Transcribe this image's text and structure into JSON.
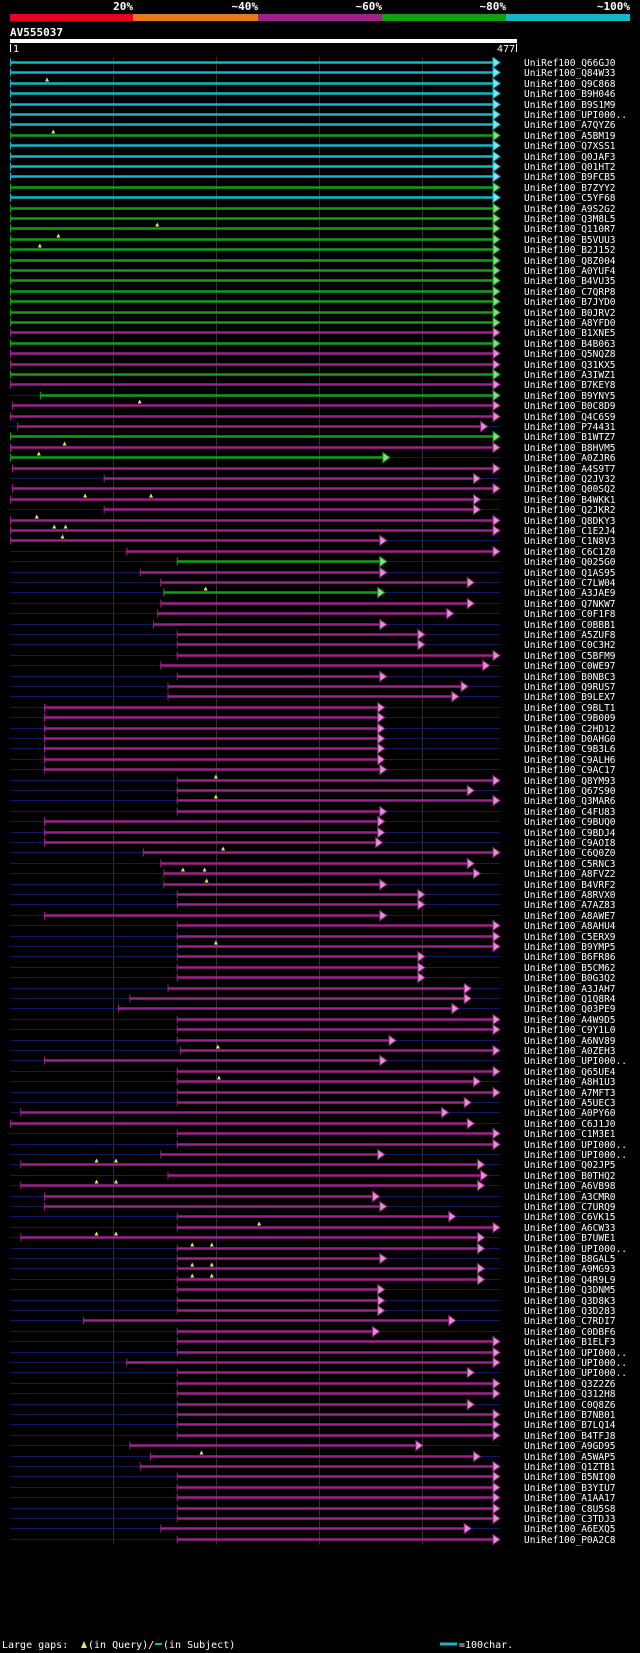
{
  "query_name": "AV555037",
  "ruler": {
    "start_label": "1",
    "end_label": "477"
  },
  "identity_legend": [
    {
      "label": "20%",
      "color": "#e8001c"
    },
    {
      "label": "~40%",
      "color": "#e87a1c"
    },
    {
      "label": "~60%",
      "color": "#a0208c"
    },
    {
      "label": "~80%",
      "color": "#12a012"
    },
    {
      "label": "~100%",
      "color": "#12b8c8"
    }
  ],
  "footer": {
    "large_gaps_label": "Large gaps:",
    "query_gap_text": "(in Query)/",
    "subject_gap_text": "(in Subject)",
    "scale_text": "=100char."
  },
  "colors": {
    "cyan": "#12b8c8",
    "green": "#12a012",
    "magenta": "#a0208c",
    "navy": "#101860",
    "gap_marker": "#f0e070",
    "grid": "#303030"
  },
  "chart_data": {
    "type": "alignment-overview",
    "query_length": 477,
    "hits": [
      {
        "name": "UniRef100_Q66GJ0",
        "color": "cyan",
        "start": 1,
        "end": 477
      },
      {
        "name": "UniRef100_Q84W33",
        "color": "cyan",
        "start": 1,
        "end": 477
      },
      {
        "name": "UniRef100_Q9C868",
        "color": "cyan",
        "start": 1,
        "end": 477,
        "gaps": [
          37
        ]
      },
      {
        "name": "UniRef100_B9H046",
        "color": "cyan",
        "start": 1,
        "end": 477
      },
      {
        "name": "UniRef100_B9S1M9",
        "color": "cyan",
        "start": 1,
        "end": 477
      },
      {
        "name": "UniRef100_UPI000..",
        "color": "cyan",
        "start": 1,
        "end": 477
      },
      {
        "name": "UniRef100_A7QYZ6",
        "color": "cyan",
        "start": 1,
        "end": 477
      },
      {
        "name": "UniRef100_A5BM19",
        "color": "green",
        "start": 1,
        "end": 477,
        "gaps": [
          43
        ]
      },
      {
        "name": "UniRef100_Q7XSS1",
        "color": "cyan",
        "start": 1,
        "end": 477
      },
      {
        "name": "UniRef100_Q0JAF3",
        "color": "cyan",
        "start": 1,
        "end": 477
      },
      {
        "name": "UniRef100_Q01HT2",
        "color": "cyan",
        "start": 1,
        "end": 477
      },
      {
        "name": "UniRef100_B9FCB5",
        "color": "cyan",
        "start": 1,
        "end": 477
      },
      {
        "name": "UniRef100_B7ZYY2",
        "color": "green",
        "start": 1,
        "end": 477
      },
      {
        "name": "UniRef100_C5YF68",
        "color": "cyan",
        "start": 1,
        "end": 477
      },
      {
        "name": "UniRef100_A9S2G2",
        "color": "green",
        "start": 1,
        "end": 477
      },
      {
        "name": "UniRef100_Q3M8L5",
        "color": "green",
        "start": 1,
        "end": 477
      },
      {
        "name": "UniRef100_Q110R7",
        "color": "green",
        "start": 1,
        "end": 477,
        "gaps": [
          144
        ]
      },
      {
        "name": "UniRef100_B5VUU3",
        "color": "green",
        "start": 1,
        "end": 477,
        "gaps": [
          48
        ]
      },
      {
        "name": "UniRef100_B2J152",
        "color": "green",
        "start": 1,
        "end": 477,
        "gaps": [
          30
        ]
      },
      {
        "name": "UniRef100_Q8Z004",
        "color": "green",
        "start": 1,
        "end": 477
      },
      {
        "name": "UniRef100_A0YUF4",
        "color": "green",
        "start": 1,
        "end": 477
      },
      {
        "name": "UniRef100_B4VU35",
        "color": "green",
        "start": 1,
        "end": 477
      },
      {
        "name": "UniRef100_C7QRP8",
        "color": "green",
        "start": 1,
        "end": 477
      },
      {
        "name": "UniRef100_B7JYD0",
        "color": "green",
        "start": 1,
        "end": 477
      },
      {
        "name": "UniRef100_B0JRV2",
        "color": "green",
        "start": 1,
        "end": 477
      },
      {
        "name": "UniRef100_A8YFD0",
        "color": "green",
        "start": 1,
        "end": 477
      },
      {
        "name": "UniRef100_B1XNE5",
        "color": "magenta",
        "start": 1,
        "end": 477
      },
      {
        "name": "UniRef100_B4B063",
        "color": "green",
        "start": 1,
        "end": 477
      },
      {
        "name": "UniRef100_Q5NQZ8",
        "color": "magenta",
        "start": 1,
        "end": 477
      },
      {
        "name": "UniRef100_Q31KX5",
        "color": "magenta",
        "start": 1,
        "end": 477
      },
      {
        "name": "UniRef100_A3IWZ1",
        "color": "green",
        "start": 1,
        "end": 477
      },
      {
        "name": "UniRef100_B7KEY8",
        "color": "magenta",
        "start": 1,
        "end": 477
      },
      {
        "name": "UniRef100_B9YNY5",
        "color": "green",
        "start": 30,
        "end": 477
      },
      {
        "name": "UniRef100_B0C8D9",
        "color": "magenta",
        "start": 3,
        "end": 477,
        "gaps": [
          127
        ]
      },
      {
        "name": "UniRef100_Q4C6S9",
        "color": "magenta",
        "start": 1,
        "end": 477
      },
      {
        "name": "UniRef100_P74431",
        "color": "magenta",
        "start": 8,
        "end": 465
      },
      {
        "name": "UniRef100_B1WTZ7",
        "color": "green",
        "start": 1,
        "end": 477
      },
      {
        "name": "UniRef100_B8HVM5",
        "color": "magenta",
        "start": 1,
        "end": 477,
        "gaps": [
          54
        ]
      },
      {
        "name": "UniRef100_A0ZJR6",
        "color": "green",
        "start": 1,
        "end": 370,
        "gaps": [
          29
        ]
      },
      {
        "name": "UniRef100_A4S9T7",
        "color": "magenta",
        "start": 3,
        "end": 477
      },
      {
        "name": "UniRef100_Q2JV32",
        "color": "magenta",
        "start": 92,
        "end": 458
      },
      {
        "name": "UniRef100_Q00SQ2",
        "color": "magenta",
        "start": 3,
        "end": 477
      },
      {
        "name": "UniRef100_B4WKK1",
        "color": "magenta",
        "start": 1,
        "end": 458,
        "gaps": [
          74,
          138
        ]
      },
      {
        "name": "UniRef100_Q2JKR2",
        "color": "magenta",
        "start": 92,
        "end": 458
      },
      {
        "name": "UniRef100_Q8DKY3",
        "color": "magenta",
        "start": 1,
        "end": 477,
        "gaps": [
          27
        ]
      },
      {
        "name": "UniRef100_C1E2J4",
        "color": "magenta",
        "start": 1,
        "end": 477,
        "gaps": [
          44,
          55
        ]
      },
      {
        "name": "UniRef100_C1N8V3",
        "color": "magenta",
        "start": 1,
        "end": 367,
        "gaps": [
          52
        ]
      },
      {
        "name": "UniRef100_C6C1Z0",
        "color": "magenta",
        "start": 114,
        "end": 477
      },
      {
        "name": "UniRef100_Q025G0",
        "color": "green",
        "start": 163,
        "end": 367
      },
      {
        "name": "UniRef100_Q1AS95",
        "color": "magenta",
        "start": 127,
        "end": 367
      },
      {
        "name": "UniRef100_C7LW04",
        "color": "magenta",
        "start": 147,
        "end": 452
      },
      {
        "name": "UniRef100_A3JAE9",
        "color": "green",
        "start": 150,
        "end": 365,
        "gaps": [
          191
        ]
      },
      {
        "name": "UniRef100_Q7NKW7",
        "color": "magenta",
        "start": 147,
        "end": 452
      },
      {
        "name": "UniRef100_C0F1F8",
        "color": "magenta",
        "start": 144,
        "end": 432
      },
      {
        "name": "UniRef100_C0BBB1",
        "color": "magenta",
        "start": 140,
        "end": 367
      },
      {
        "name": "UniRef100_A5ZUF8",
        "color": "magenta",
        "start": 163,
        "end": 404
      },
      {
        "name": "UniRef100_C0C3H2",
        "color": "magenta",
        "start": 163,
        "end": 404
      },
      {
        "name": "UniRef100_C5BFM9",
        "color": "magenta",
        "start": 163,
        "end": 477
      },
      {
        "name": "UniRef100_C0WE97",
        "color": "magenta",
        "start": 147,
        "end": 467
      },
      {
        "name": "UniRef100_B0NBC3",
        "color": "magenta",
        "start": 163,
        "end": 367
      },
      {
        "name": "UniRef100_Q9RUS7",
        "color": "magenta",
        "start": 154,
        "end": 446
      },
      {
        "name": "UniRef100_B9LEX7",
        "color": "magenta",
        "start": 154,
        "end": 437
      },
      {
        "name": "UniRef100_C9BLT1",
        "color": "magenta",
        "start": 34,
        "end": 365
      },
      {
        "name": "UniRef100_C9B009",
        "color": "magenta",
        "start": 34,
        "end": 365
      },
      {
        "name": "UniRef100_C2HD12",
        "color": "magenta",
        "start": 34,
        "end": 365
      },
      {
        "name": "UniRef100_D0AHG0",
        "color": "magenta",
        "start": 34,
        "end": 365
      },
      {
        "name": "UniRef100_C9B3L6",
        "color": "magenta",
        "start": 34,
        "end": 365
      },
      {
        "name": "UniRef100_C9ALH6",
        "color": "magenta",
        "start": 34,
        "end": 365
      },
      {
        "name": "UniRef100_C9AC17",
        "color": "magenta",
        "start": 34,
        "end": 367
      },
      {
        "name": "UniRef100_Q8YM93",
        "color": "magenta",
        "start": 163,
        "end": 477,
        "gaps": [
          201
        ]
      },
      {
        "name": "UniRef100_Q67S90",
        "color": "magenta",
        "start": 163,
        "end": 452
      },
      {
        "name": "UniRef100_Q3MAR6",
        "color": "magenta",
        "start": 163,
        "end": 477,
        "gaps": [
          201
        ]
      },
      {
        "name": "UniRef100_C4FU83",
        "color": "magenta",
        "start": 163,
        "end": 367
      },
      {
        "name": "UniRef100_C9BUQ0",
        "color": "magenta",
        "start": 34,
        "end": 365
      },
      {
        "name": "UniRef100_C9BDJ4",
        "color": "magenta",
        "start": 34,
        "end": 365
      },
      {
        "name": "UniRef100_C9AOI8",
        "color": "magenta",
        "start": 34,
        "end": 363
      },
      {
        "name": "UniRef100_C6Q0Z0",
        "color": "magenta",
        "start": 130,
        "end": 477,
        "gaps": [
          208
        ]
      },
      {
        "name": "UniRef100_C5RNC3",
        "color": "magenta",
        "start": 147,
        "end": 452
      },
      {
        "name": "UniRef100_A8FVZ2",
        "color": "magenta",
        "start": 150,
        "end": 458,
        "gaps": [
          169,
          190
        ]
      },
      {
        "name": "UniRef100_B4VRF2",
        "color": "magenta",
        "start": 150,
        "end": 367,
        "gaps": [
          192
        ]
      },
      {
        "name": "UniRef100_A8RVX0",
        "color": "magenta",
        "start": 163,
        "end": 404
      },
      {
        "name": "UniRef100_A7AZ83",
        "color": "magenta",
        "start": 163,
        "end": 404
      },
      {
        "name": "UniRef100_A8AWE7",
        "color": "magenta",
        "start": 34,
        "end": 367
      },
      {
        "name": "UniRef100_A8AHU4",
        "color": "magenta",
        "start": 163,
        "end": 477
      },
      {
        "name": "UniRef100_C5ERX9",
        "color": "magenta",
        "start": 163,
        "end": 477
      },
      {
        "name": "UniRef100_B9YMP5",
        "color": "magenta",
        "start": 163,
        "end": 477,
        "gaps": [
          201
        ]
      },
      {
        "name": "UniRef100_B6FR86",
        "color": "magenta",
        "start": 163,
        "end": 404
      },
      {
        "name": "UniRef100_B5CM62",
        "color": "magenta",
        "start": 163,
        "end": 404
      },
      {
        "name": "UniRef100_B0G3Q2",
        "color": "magenta",
        "start": 163,
        "end": 404
      },
      {
        "name": "UniRef100_A3JAH7",
        "color": "magenta",
        "start": 154,
        "end": 449
      },
      {
        "name": "UniRef100_Q1Q8R4",
        "color": "magenta",
        "start": 117,
        "end": 449
      },
      {
        "name": "UniRef100_Q03PE9",
        "color": "magenta",
        "start": 106,
        "end": 437
      },
      {
        "name": "UniRef100_A4W9D5",
        "color": "magenta",
        "start": 163,
        "end": 477
      },
      {
        "name": "UniRef100_C9Y1L0",
        "color": "magenta",
        "start": 163,
        "end": 477
      },
      {
        "name": "UniRef100_A6NV89",
        "color": "magenta",
        "start": 163,
        "end": 376
      },
      {
        "name": "UniRef100_A0ZEH3",
        "color": "magenta",
        "start": 166,
        "end": 477,
        "gaps": [
          203
        ]
      },
      {
        "name": "UniRef100_UPI000..",
        "color": "magenta",
        "start": 34,
        "end": 367
      },
      {
        "name": "UniRef100_Q65UE4",
        "color": "magenta",
        "start": 163,
        "end": 477
      },
      {
        "name": "UniRef100_A8H1U3",
        "color": "magenta",
        "start": 163,
        "end": 458,
        "gaps": [
          204
        ]
      },
      {
        "name": "UniRef100_A7MFT3",
        "color": "magenta",
        "start": 163,
        "end": 477
      },
      {
        "name": "UniRef100_A5UEC3",
        "color": "magenta",
        "start": 163,
        "end": 449
      },
      {
        "name": "UniRef100_A0PY60",
        "color": "magenta",
        "start": 11,
        "end": 427
      },
      {
        "name": "UniRef100_C6J1J0",
        "color": "magenta",
        "start": 1,
        "end": 452
      },
      {
        "name": "UniRef100_C1M3E1",
        "color": "magenta",
        "start": 163,
        "end": 477
      },
      {
        "name": "UniRef100_UPI000..",
        "color": "magenta",
        "start": 163,
        "end": 477
      },
      {
        "name": "UniRef100_UPI000..",
        "color": "magenta",
        "start": 147,
        "end": 365
      },
      {
        "name": "UniRef100_Q02JP5",
        "color": "magenta",
        "start": 11,
        "end": 462,
        "gaps": [
          85,
          104
        ]
      },
      {
        "name": "UniRef100_B0THQ2",
        "color": "magenta",
        "start": 154,
        "end": 465
      },
      {
        "name": "UniRef100_A6VB98",
        "color": "magenta",
        "start": 11,
        "end": 462,
        "gaps": [
          85,
          104
        ]
      },
      {
        "name": "UniRef100_A3CMR0",
        "color": "magenta",
        "start": 34,
        "end": 360
      },
      {
        "name": "UniRef100_C7URQ9",
        "color": "magenta",
        "start": 34,
        "end": 367
      },
      {
        "name": "UniRef100_C6VK15",
        "color": "magenta",
        "start": 163,
        "end": 434
      },
      {
        "name": "UniRef100_A6CW33",
        "color": "magenta",
        "start": 163,
        "end": 477,
        "gaps": [
          243
        ]
      },
      {
        "name": "UniRef100_B7UWE1",
        "color": "magenta",
        "start": 11,
        "end": 462,
        "gaps": [
          85,
          104
        ]
      },
      {
        "name": "UniRef100_UPI000..",
        "color": "magenta",
        "start": 163,
        "end": 462,
        "gaps": [
          178,
          197
        ]
      },
      {
        "name": "UniRef100_B8GAL5",
        "color": "magenta",
        "start": 163,
        "end": 367
      },
      {
        "name": "UniRef100_A9MG93",
        "color": "magenta",
        "start": 163,
        "end": 462,
        "gaps": [
          178,
          197
        ]
      },
      {
        "name": "UniRef100_Q4R9L9",
        "color": "magenta",
        "start": 163,
        "end": 462,
        "gaps": [
          178,
          197
        ]
      },
      {
        "name": "UniRef100_Q3DNM5",
        "color": "magenta",
        "start": 163,
        "end": 365
      },
      {
        "name": "UniRef100_Q3D8K3",
        "color": "magenta",
        "start": 163,
        "end": 365
      },
      {
        "name": "UniRef100_Q3D283",
        "color": "magenta",
        "start": 163,
        "end": 365
      },
      {
        "name": "UniRef100_C7RDI7",
        "color": "magenta",
        "start": 72,
        "end": 434
      },
      {
        "name": "UniRef100_C0DBF6",
        "color": "magenta",
        "start": 163,
        "end": 360
      },
      {
        "name": "UniRef100_B1ELF3",
        "color": "magenta",
        "start": 163,
        "end": 477
      },
      {
        "name": "UniRef100_UPI000..",
        "color": "magenta",
        "start": 163,
        "end": 477
      },
      {
        "name": "UniRef100_UPI000..",
        "color": "magenta",
        "start": 114,
        "end": 477
      },
      {
        "name": "UniRef100_UPI000..",
        "color": "magenta",
        "start": 163,
        "end": 452
      },
      {
        "name": "UniRef100_Q3Z2Z6",
        "color": "magenta",
        "start": 163,
        "end": 477
      },
      {
        "name": "UniRef100_Q312H8",
        "color": "magenta",
        "start": 163,
        "end": 477
      },
      {
        "name": "UniRef100_C0Q8Z6",
        "color": "magenta",
        "start": 163,
        "end": 452
      },
      {
        "name": "UniRef100_B7NB01",
        "color": "magenta",
        "start": 163,
        "end": 477
      },
      {
        "name": "UniRef100_B7LQ14",
        "color": "magenta",
        "start": 163,
        "end": 477
      },
      {
        "name": "UniRef100_B4TFJ8",
        "color": "magenta",
        "start": 163,
        "end": 477
      },
      {
        "name": "UniRef100_A9GD95",
        "color": "magenta",
        "start": 117,
        "end": 402
      },
      {
        "name": "UniRef100_A5WAP5",
        "color": "magenta",
        "start": 137,
        "end": 458,
        "gaps": [
          187
        ]
      },
      {
        "name": "UniRef100_Q1ZTB1",
        "color": "magenta",
        "start": 127,
        "end": 477
      },
      {
        "name": "UniRef100_B5NIQ0",
        "color": "magenta",
        "start": 163,
        "end": 477
      },
      {
        "name": "UniRef100_B3YIU7",
        "color": "magenta",
        "start": 163,
        "end": 477
      },
      {
        "name": "UniRef100_A1AA17",
        "color": "magenta",
        "start": 163,
        "end": 477
      },
      {
        "name": "UniRef100_C8U5S8",
        "color": "magenta",
        "start": 163,
        "end": 477
      },
      {
        "name": "UniRef100_C3TDJ3",
        "color": "magenta",
        "start": 163,
        "end": 477
      },
      {
        "name": "UniRef100_A6EXQ5",
        "color": "magenta",
        "start": 147,
        "end": 449
      },
      {
        "name": "UniRef100_P0A2C8",
        "color": "magenta",
        "start": 163,
        "end": 477
      }
    ]
  }
}
